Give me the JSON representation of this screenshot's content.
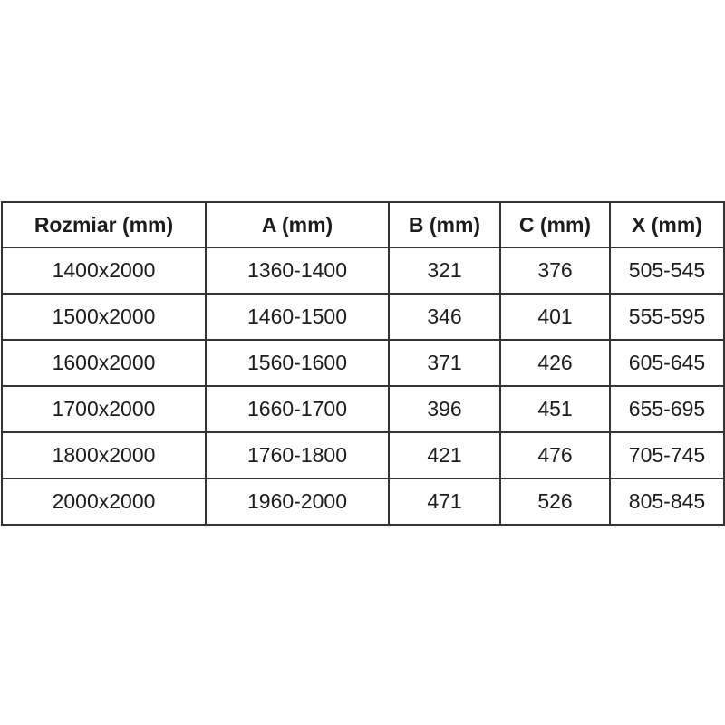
{
  "page": {
    "background_color": "#ffffff"
  },
  "table": {
    "columns": [
      "Rozmiar (mm)",
      "A (mm)",
      "B (mm)",
      "C (mm)",
      "X (mm)"
    ],
    "rows": [
      [
        "1400x2000",
        "1360-1400",
        "321",
        "376",
        "505-545"
      ],
      [
        "1500x2000",
        "1460-1500",
        "346",
        "401",
        "555-595"
      ],
      [
        "1600x2000",
        "1560-1600",
        "371",
        "426",
        "605-645"
      ],
      [
        "1700x2000",
        "1660-1700",
        "396",
        "451",
        "655-695"
      ],
      [
        "1800x2000",
        "1760-1800",
        "421",
        "476",
        "705-745"
      ],
      [
        "2000x2000",
        "1960-2000",
        "471",
        "526",
        "805-845"
      ]
    ],
    "border_color": "#333333",
    "text_color": "#1c1c1c"
  },
  "chart_data": {
    "type": "table",
    "title": "",
    "columns": [
      "Rozmiar (mm)",
      "A (mm)",
      "B (mm)",
      "C (mm)",
      "X (mm)"
    ],
    "rows": [
      {
        "rozmiar_mm": "1400x2000",
        "a_mm": "1360-1400",
        "b_mm": 321,
        "c_mm": 376,
        "x_mm": "505-545"
      },
      {
        "rozmiar_mm": "1500x2000",
        "a_mm": "1460-1500",
        "b_mm": 346,
        "c_mm": 401,
        "x_mm": "555-595"
      },
      {
        "rozmiar_mm": "1600x2000",
        "a_mm": "1560-1600",
        "b_mm": 371,
        "c_mm": 426,
        "x_mm": "605-645"
      },
      {
        "rozmiar_mm": "1700x2000",
        "a_mm": "1660-1700",
        "b_mm": 396,
        "c_mm": 451,
        "x_mm": "655-695"
      },
      {
        "rozmiar_mm": "1800x2000",
        "a_mm": "1760-1800",
        "b_mm": 421,
        "c_mm": 476,
        "x_mm": "705-745"
      },
      {
        "rozmiar_mm": "2000x2000",
        "a_mm": "1960-2000",
        "b_mm": 471,
        "c_mm": 526,
        "x_mm": "805-845"
      }
    ],
    "layout_hints": {
      "header_row_bold": true,
      "cell_alignment": "center",
      "grid": true,
      "border_px": 2
    }
  }
}
